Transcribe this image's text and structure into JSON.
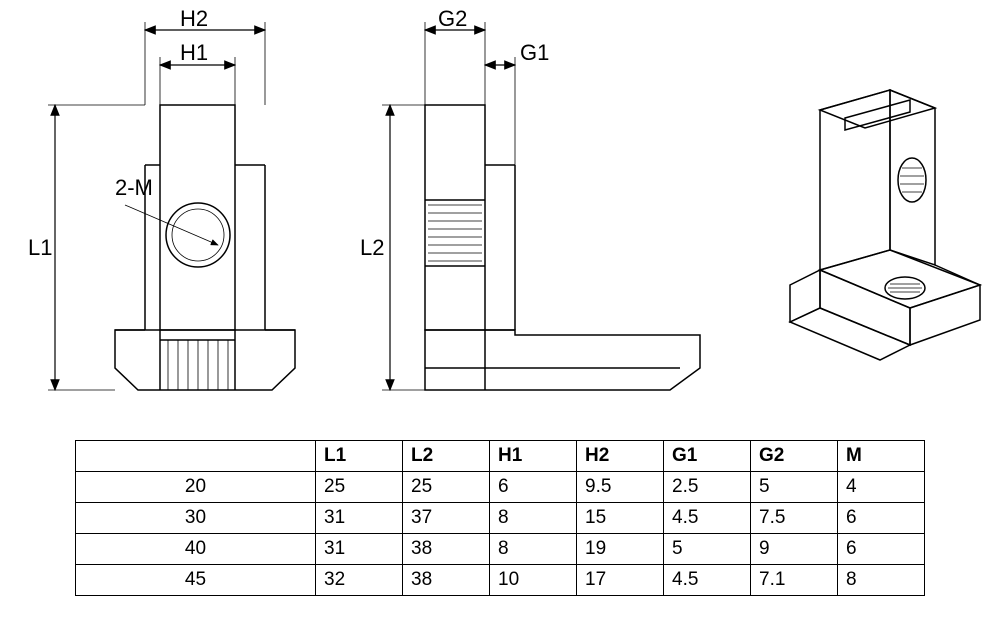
{
  "diagram": {
    "labels": {
      "L1": "L1",
      "L2": "L2",
      "H1": "H1",
      "H2": "H2",
      "G1": "G1",
      "G2": "G2",
      "thread": "2-M"
    },
    "stroke_color": "#000000",
    "background": "#ffffff",
    "line_width_main": 1.5,
    "line_width_dim": 1.2,
    "font_size_labels": 22
  },
  "table": {
    "columns": [
      "",
      "L1",
      "L2",
      "H1",
      "H2",
      "G1",
      "G2",
      "M"
    ],
    "rows": [
      [
        "20",
        "25",
        "25",
        "6",
        "9.5",
        "2.5",
        "5",
        "4"
      ],
      [
        "30",
        "31",
        "37",
        "8",
        "15",
        "4.5",
        "7.5",
        "6"
      ],
      [
        "40",
        "31",
        "38",
        "8",
        "19",
        "5",
        "9",
        "6"
      ],
      [
        "45",
        "32",
        "38",
        "10",
        "17",
        "4.5",
        "7.1",
        "8"
      ]
    ],
    "border_color": "#000000",
    "font_size": 19,
    "first_col_width": 240,
    "data_col_width": 87
  }
}
